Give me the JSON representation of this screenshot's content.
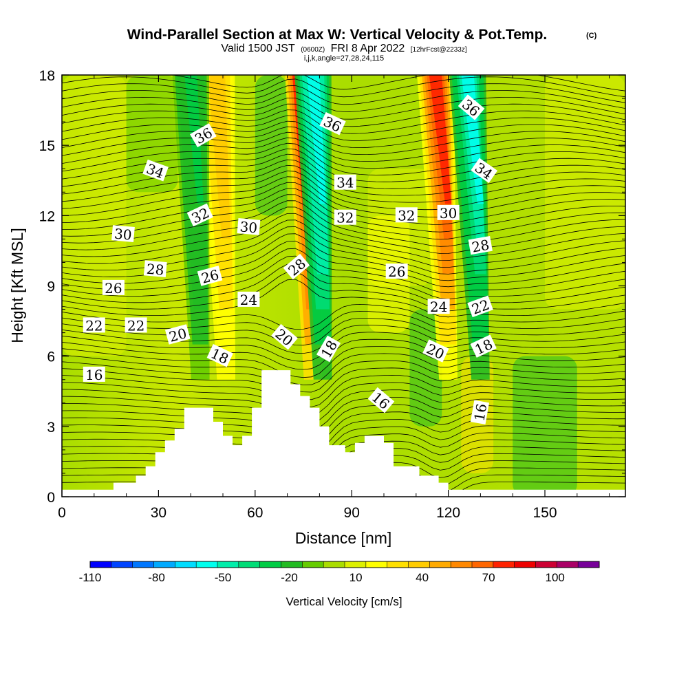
{
  "chart_data": {
    "type": "heatmap",
    "title": "Wind-Parallel Section at Max W: Vertical Velocity & Pot.Temp.",
    "title_mark": "(C)",
    "subtitle": {
      "prefix": "Valid 1500 JST",
      "utc": "(0600Z)",
      "date": "FRI 8 Apr 2022",
      "forecast": "[12hrFcst@2233z]"
    },
    "indices": "i,j,k,angle=27,28,24,115",
    "xlabel": "Distance [nm]",
    "ylabel": "Height [Kft MSL]",
    "xlim": [
      0,
      175
    ],
    "ylim": [
      0,
      18
    ],
    "x_ticks": [
      0,
      30,
      60,
      90,
      120,
      150
    ],
    "y_ticks": [
      0,
      3,
      6,
      9,
      12,
      15,
      18
    ],
    "grid": false,
    "colorbar": {
      "label": "Vertical Velocity [cm/s]",
      "placement": "bottom",
      "min": -110,
      "max": 120,
      "step": 10,
      "tick_values": [
        -110,
        -80,
        -50,
        -20,
        10,
        40,
        70,
        100
      ],
      "colors": [
        "#0000ff",
        "#0044ff",
        "#0077ff",
        "#00aaff",
        "#00ddff",
        "#00ffee",
        "#00eeaa",
        "#00dd77",
        "#00cc44",
        "#22bb22",
        "#66cc00",
        "#aadd00",
        "#ddf000",
        "#ffff00",
        "#ffe000",
        "#ffcc00",
        "#ffaa00",
        "#ff8800",
        "#ff6600",
        "#ff2200",
        "#ee0000",
        "#cc0033",
        "#aa0066",
        "#770099"
      ]
    },
    "vertical_velocity_features": [
      {
        "x": 75,
        "z_top": 18,
        "peak": 110,
        "sign": "up"
      },
      {
        "x": 78,
        "z_top": 18,
        "peak": -60,
        "sign": "down"
      },
      {
        "x": 116,
        "z_top": 18,
        "peak": 80,
        "sign": "up"
      },
      {
        "x": 126,
        "z_top": 18,
        "peak": -55,
        "sign": "down"
      },
      {
        "x": 48,
        "z_top": 18,
        "peak": 40,
        "sign": "up"
      },
      {
        "x": 40,
        "z_top": 18,
        "peak": -25,
        "sign": "down"
      }
    ],
    "potential_temperature_contour_labels": [
      {
        "text": "36",
        "x": 44,
        "y": 15.4,
        "angle": -30
      },
      {
        "text": "34",
        "x": 29,
        "y": 13.9,
        "angle": 20
      },
      {
        "text": "32",
        "x": 43,
        "y": 12.0,
        "angle": -25
      },
      {
        "text": "30",
        "x": 19,
        "y": 11.2,
        "angle": 5
      },
      {
        "text": "30",
        "x": 58,
        "y": 11.5,
        "angle": 5
      },
      {
        "text": "28",
        "x": 29,
        "y": 9.7,
        "angle": 5
      },
      {
        "text": "26",
        "x": 16,
        "y": 8.9,
        "angle": 0
      },
      {
        "text": "26",
        "x": 46,
        "y": 9.4,
        "angle": -15
      },
      {
        "text": "24",
        "x": 58,
        "y": 8.4,
        "angle": 0
      },
      {
        "text": "22",
        "x": 10,
        "y": 7.3,
        "angle": 0
      },
      {
        "text": "22",
        "x": 23,
        "y": 7.3,
        "angle": 0
      },
      {
        "text": "20",
        "x": 36,
        "y": 6.9,
        "angle": -15
      },
      {
        "text": "18",
        "x": 49,
        "y": 6.0,
        "angle": 25
      },
      {
        "text": "36",
        "x": 84,
        "y": 15.9,
        "angle": 25
      },
      {
        "text": "34",
        "x": 88,
        "y": 13.4,
        "angle": 0
      },
      {
        "text": "32",
        "x": 88,
        "y": 11.9,
        "angle": 0
      },
      {
        "text": "28",
        "x": 73,
        "y": 9.8,
        "angle": -40
      },
      {
        "text": "20",
        "x": 69,
        "y": 6.8,
        "angle": 40
      },
      {
        "text": "18",
        "x": 83,
        "y": 6.3,
        "angle": -60
      },
      {
        "text": "16",
        "x": 99,
        "y": 4.1,
        "angle": 40
      },
      {
        "text": "32",
        "x": 107,
        "y": 12.0,
        "angle": 0
      },
      {
        "text": "30",
        "x": 120,
        "y": 12.1,
        "angle": 0
      },
      {
        "text": "26",
        "x": 104,
        "y": 9.6,
        "angle": 0
      },
      {
        "text": "24",
        "x": 117,
        "y": 8.1,
        "angle": 0
      },
      {
        "text": "20",
        "x": 116,
        "y": 6.2,
        "angle": 25
      },
      {
        "text": "36",
        "x": 127,
        "y": 16.6,
        "angle": 40
      },
      {
        "text": "34",
        "x": 131,
        "y": 13.9,
        "angle": 35
      },
      {
        "text": "28",
        "x": 130,
        "y": 10.7,
        "angle": -10
      },
      {
        "text": "22",
        "x": 130,
        "y": 8.1,
        "angle": -20
      },
      {
        "text": "18",
        "x": 131,
        "y": 6.4,
        "angle": -25
      },
      {
        "text": "16",
        "x": 130,
        "y": 3.6,
        "angle": -80
      },
      {
        "text": "16",
        "x": 10,
        "y": 5.2,
        "angle": 0
      }
    ],
    "terrain_profile_kft": [
      [
        0,
        0.3
      ],
      [
        16,
        0.3
      ],
      [
        16,
        0.6
      ],
      [
        23,
        0.6
      ],
      [
        23,
        0.9
      ],
      [
        26,
        0.9
      ],
      [
        26,
        1.3
      ],
      [
        29,
        1.3
      ],
      [
        29,
        1.9
      ],
      [
        32,
        1.9
      ],
      [
        32,
        2.4
      ],
      [
        35,
        2.4
      ],
      [
        35,
        2.9
      ],
      [
        38,
        2.9
      ],
      [
        38,
        3.8
      ],
      [
        47,
        3.8
      ],
      [
        47,
        3.2
      ],
      [
        50,
        3.2
      ],
      [
        50,
        2.6
      ],
      [
        53,
        2.6
      ],
      [
        53,
        2.2
      ],
      [
        56,
        2.2
      ],
      [
        56,
        2.6
      ],
      [
        59,
        2.6
      ],
      [
        59,
        3.8
      ],
      [
        62,
        3.8
      ],
      [
        62,
        4.2
      ],
      [
        62,
        5.4
      ],
      [
        71,
        5.4
      ],
      [
        71,
        4.8
      ],
      [
        74,
        4.8
      ],
      [
        74,
        4.3
      ],
      [
        77,
        4.3
      ],
      [
        77,
        3.8
      ],
      [
        80,
        3.8
      ],
      [
        80,
        3.0
      ],
      [
        83,
        3.0
      ],
      [
        83,
        2.2
      ],
      [
        88,
        2.2
      ],
      [
        88,
        1.9
      ],
      [
        91,
        1.9
      ],
      [
        91,
        2.3
      ],
      [
        94,
        2.3
      ],
      [
        94,
        2.6
      ],
      [
        100,
        2.6
      ],
      [
        100,
        2.3
      ],
      [
        103,
        2.3
      ],
      [
        103,
        1.3
      ],
      [
        111,
        1.3
      ],
      [
        111,
        0.9
      ],
      [
        117,
        0.9
      ],
      [
        117,
        0.6
      ],
      [
        120,
        0.6
      ],
      [
        120,
        0.3
      ],
      [
        175,
        0.3
      ]
    ]
  }
}
